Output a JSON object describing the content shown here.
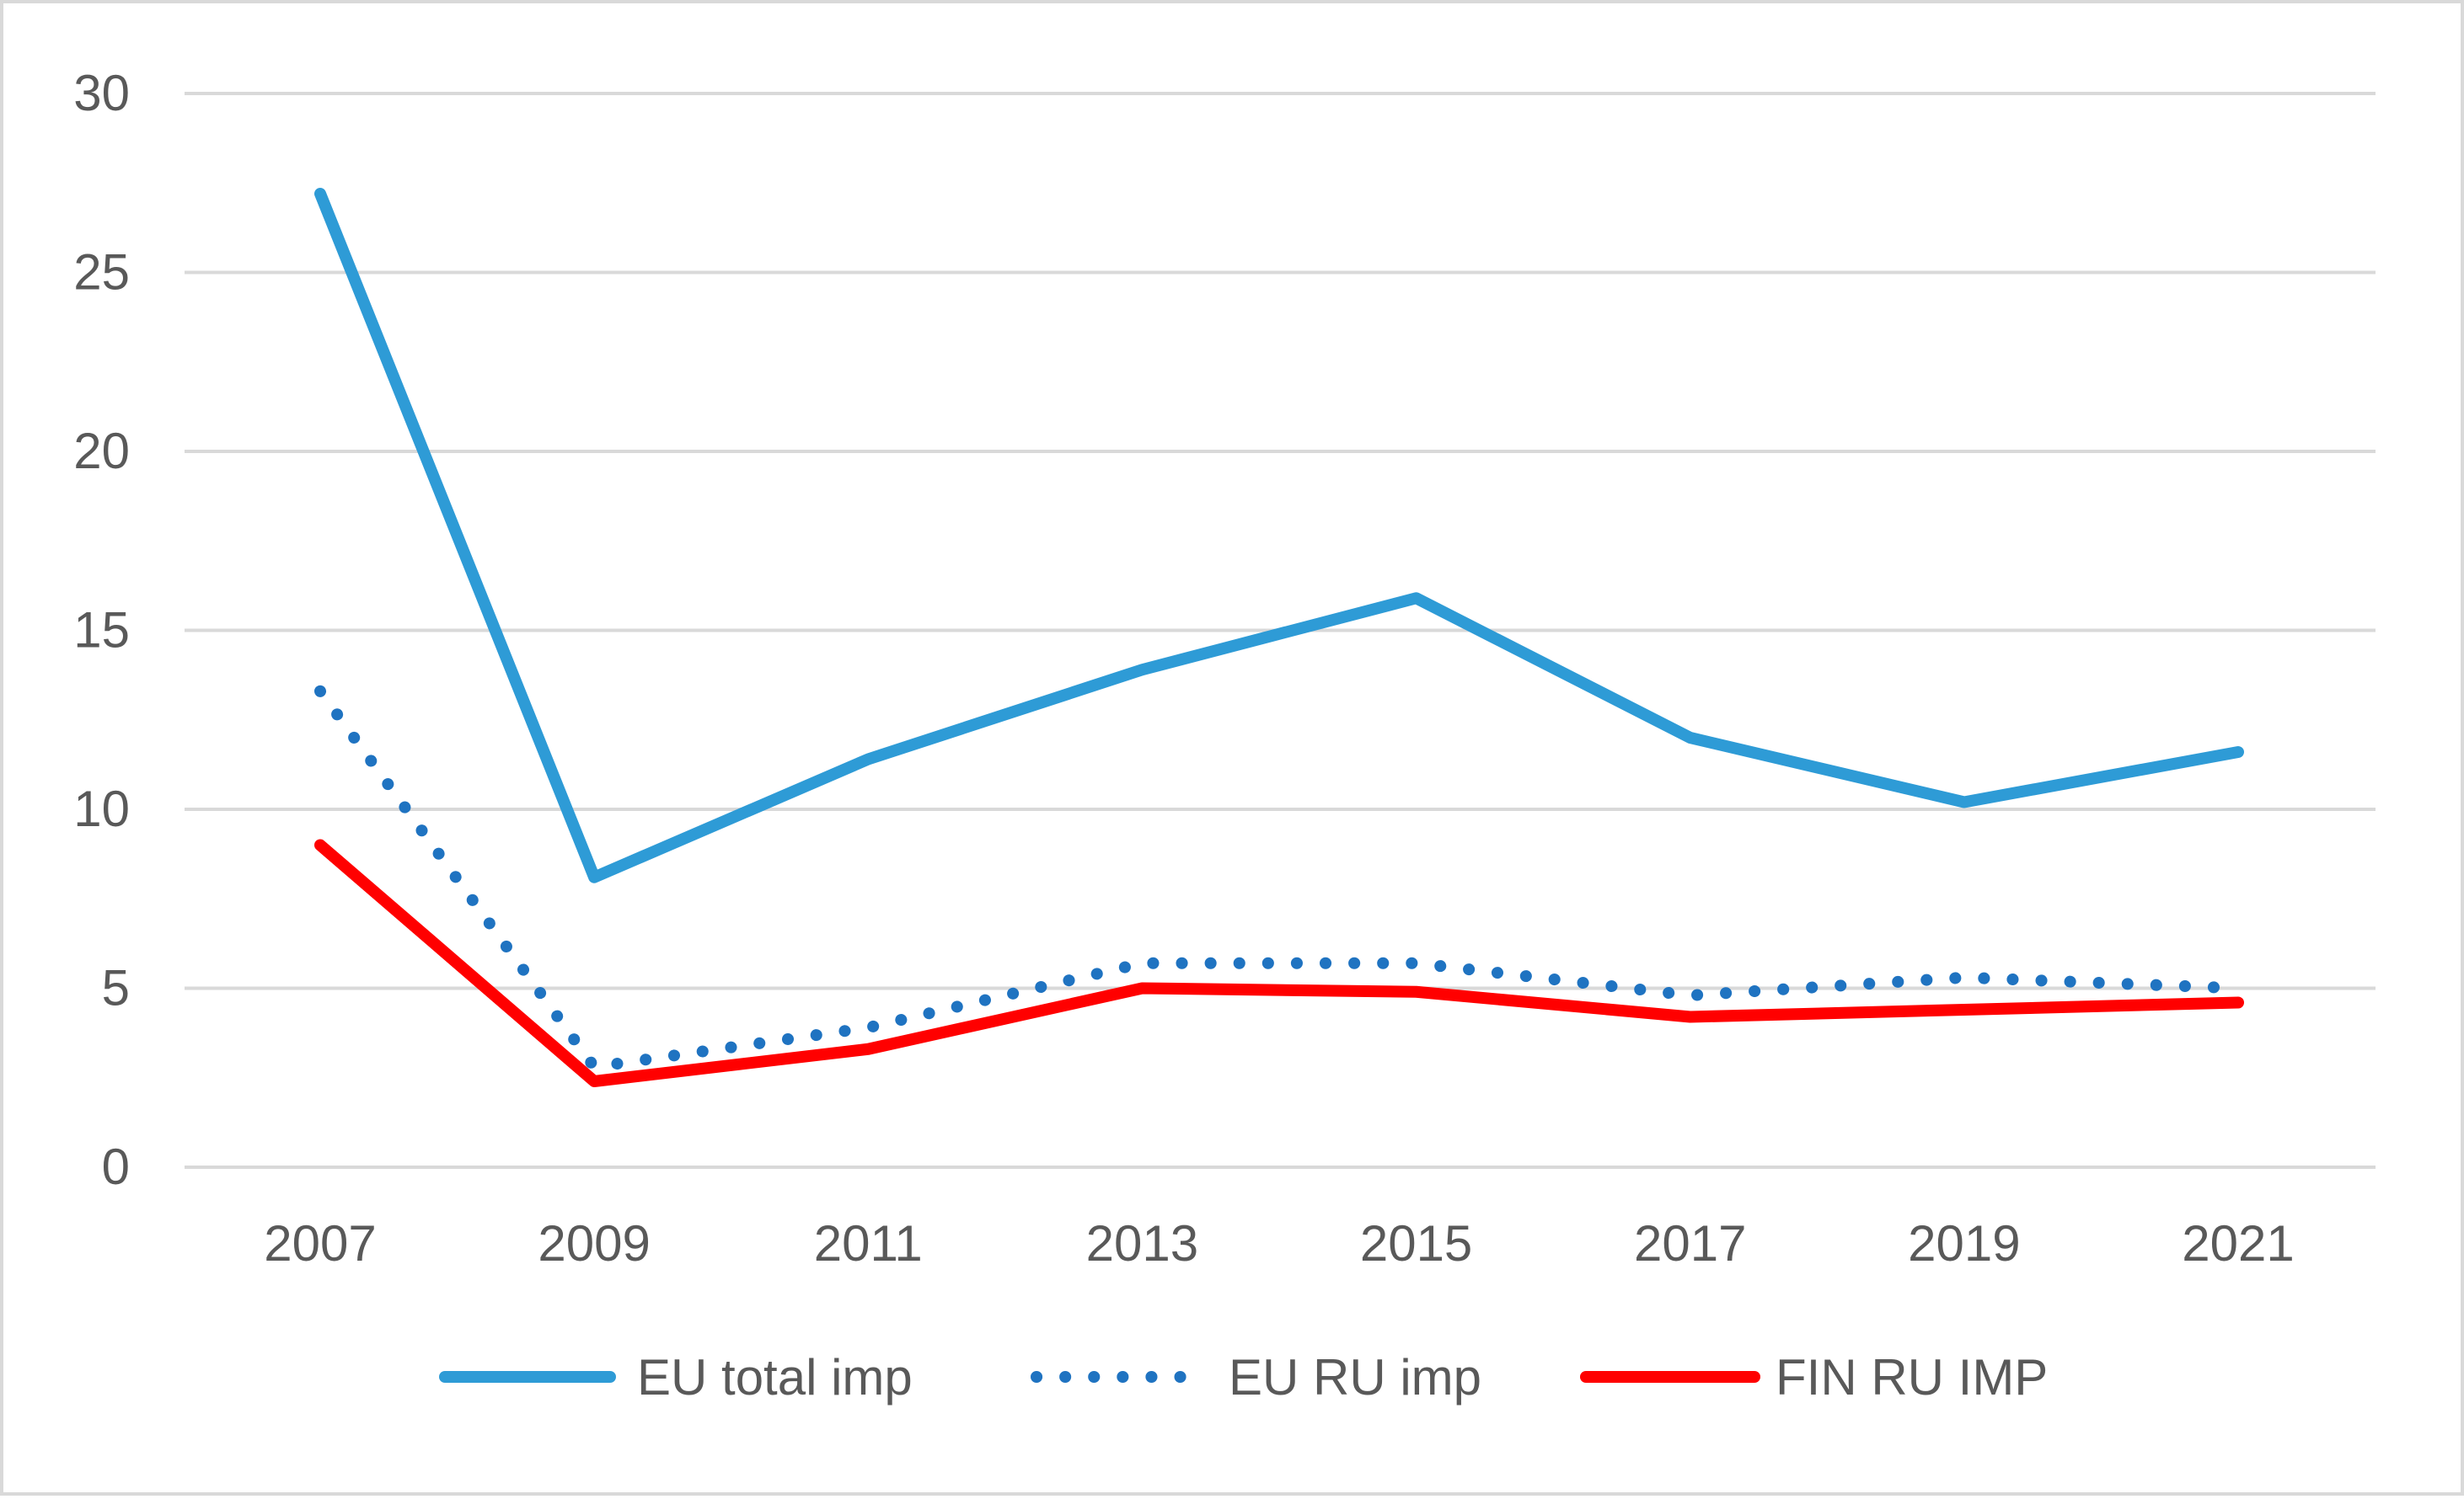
{
  "chart_data": {
    "type": "line",
    "title": "",
    "xlabel": "",
    "ylabel": "",
    "x": [
      "2007",
      "2009",
      "2011",
      "2013",
      "2015",
      "2017",
      "2019",
      "2021"
    ],
    "ylim": [
      0,
      30
    ],
    "yticks": [
      "0",
      "5",
      "10",
      "15",
      "20",
      "25",
      "30"
    ],
    "grid": true,
    "legend_position": "bottom",
    "series": [
      {
        "name": "EU total imp",
        "color": "#2e9bd6",
        "style": "solid",
        "values": [
          27.2,
          8.1,
          11.4,
          13.9,
          15.9,
          12.0,
          10.2,
          11.6
        ]
      },
      {
        "name": "EU RU imp",
        "color": "#1f73c1",
        "style": "dotted",
        "values": [
          13.3,
          2.8,
          3.9,
          5.7,
          5.7,
          4.8,
          5.3,
          5.0
        ]
      },
      {
        "name": "FIN RU IMP",
        "color": "#ff0000",
        "style": "solid",
        "values": [
          9.0,
          2.4,
          3.3,
          5.0,
          4.9,
          4.2,
          4.4,
          4.6
        ]
      }
    ]
  }
}
